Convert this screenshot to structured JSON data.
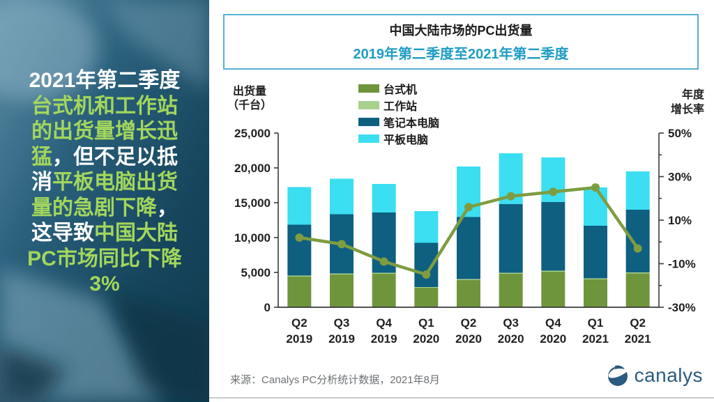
{
  "sidebar": {
    "text_colors": {
      "white": "#ffffff",
      "green": "#a3d65c"
    },
    "lines": [
      [
        {
          "text": "2021年第二季度",
          "color": "white"
        }
      ],
      [
        {
          "text": "台式机和工作站",
          "color": "green"
        }
      ],
      [
        {
          "text": "的出货量增长迅",
          "color": "green"
        }
      ],
      [
        {
          "text": "猛",
          "color": "green"
        },
        {
          "text": "，但不足以抵",
          "color": "white"
        }
      ],
      [
        {
          "text": "消",
          "color": "white"
        },
        {
          "text": "平板电脑出货",
          "color": "green"
        }
      ],
      [
        {
          "text": "量的急剧下降",
          "color": "green"
        },
        {
          "text": "，",
          "color": "white"
        }
      ],
      [
        {
          "text": "这导致",
          "color": "white"
        },
        {
          "text": "中国大陆",
          "color": "green"
        }
      ],
      [
        {
          "text": "PC市场同比下降",
          "color": "green"
        }
      ],
      [
        {
          "text": "3%",
          "color": "green"
        }
      ]
    ]
  },
  "chart_data": {
    "type": "bar+line",
    "title": "中国大陆市场的PC出货量",
    "subtitle": "2019年第二季度至2021年第二季度",
    "subtitle_color": "#1f9dc4",
    "title_box_border_color": "#57b1d2",
    "grid": false,
    "legend_position": "top-center",
    "categories": [
      {
        "quarter": "Q2",
        "year": "2019"
      },
      {
        "quarter": "Q3",
        "year": "2019"
      },
      {
        "quarter": "Q4",
        "year": "2019"
      },
      {
        "quarter": "Q1",
        "year": "2020"
      },
      {
        "quarter": "Q2",
        "year": "2020"
      },
      {
        "quarter": "Q3",
        "year": "2020"
      },
      {
        "quarter": "Q4",
        "year": "2020"
      },
      {
        "quarter": "Q1",
        "year": "2021"
      },
      {
        "quarter": "Q2",
        "year": "2021"
      }
    ],
    "left_axis": {
      "label_line1": "出货量",
      "label_line2": "（千台）",
      "min": 0,
      "max": 25000,
      "step": 5000
    },
    "right_axis": {
      "label_line1": "年度",
      "label_line2": "增长率",
      "min": -30,
      "max": 50,
      "major_step": 20,
      "minor_step": 10,
      "unit": "%"
    },
    "series": [
      {
        "key": "desktop",
        "name": "台式机",
        "type": "bar",
        "color": "#6F953C",
        "values": [
          4400,
          4700,
          4800,
          2800,
          3900,
          4800,
          5100,
          4000,
          4850
        ]
      },
      {
        "key": "workstation",
        "name": "工作站",
        "type": "bar",
        "color": "#A9D18E",
        "values": [
          150,
          150,
          150,
          100,
          150,
          150,
          150,
          150,
          150
        ]
      },
      {
        "key": "notebook",
        "name": "笔记本电脑",
        "type": "bar",
        "color": "#0E5F80",
        "values": [
          7300,
          8500,
          8650,
          6350,
          8900,
          9850,
          9850,
          7550,
          9000
        ]
      },
      {
        "key": "tablet",
        "name": "平板电脑",
        "type": "bar",
        "color": "#3CDEF1",
        "values": [
          5400,
          5100,
          4100,
          4550,
          7250,
          7300,
          6400,
          5500,
          5500
        ]
      },
      {
        "key": "yoy-growth",
        "name": "年度增长率",
        "type": "line",
        "axis": "right",
        "color": "#7E9C40",
        "values": [
          2,
          -1,
          -9,
          -15,
          16,
          21,
          23,
          25,
          -3
        ]
      }
    ],
    "axis_text_color": "#1f1f1f",
    "axis_line_color": "#3a3a3a"
  },
  "footer": {
    "source": "来源：Canalys PC分析统计数据，2021年8月",
    "logo_text": "canalys",
    "logo_color": "#2b5b7e"
  }
}
